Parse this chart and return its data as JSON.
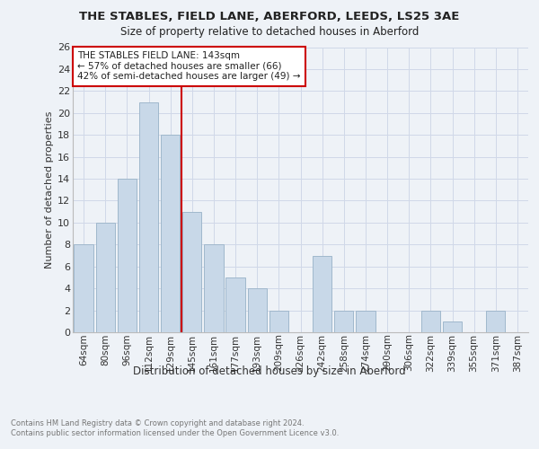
{
  "title1": "THE STABLES, FIELD LANE, ABERFORD, LEEDS, LS25 3AE",
  "title2": "Size of property relative to detached houses in Aberford",
  "xlabel": "Distribution of detached houses by size in Aberford",
  "ylabel": "Number of detached properties",
  "categories": [
    "64sqm",
    "80sqm",
    "96sqm",
    "112sqm",
    "129sqm",
    "145sqm",
    "161sqm",
    "177sqm",
    "193sqm",
    "209sqm",
    "226sqm",
    "242sqm",
    "258sqm",
    "274sqm",
    "290sqm",
    "306sqm",
    "322sqm",
    "339sqm",
    "355sqm",
    "371sqm",
    "387sqm"
  ],
  "values": [
    8,
    10,
    14,
    21,
    18,
    11,
    8,
    5,
    4,
    2,
    0,
    7,
    2,
    2,
    0,
    0,
    2,
    1,
    0,
    2,
    0
  ],
  "bar_color": "#c8d8e8",
  "bar_edge_color": "#a0b8cc",
  "grid_color": "#d0d8e8",
  "vline_x": 4.5,
  "vline_color": "#cc0000",
  "annotation_text": "THE STABLES FIELD LANE: 143sqm\n← 57% of detached houses are smaller (66)\n42% of semi-detached houses are larger (49) →",
  "annotation_box_color": "#ffffff",
  "annotation_box_edge": "#cc0000",
  "footnote": "Contains HM Land Registry data © Crown copyright and database right 2024.\nContains public sector information licensed under the Open Government Licence v3.0.",
  "ylim": [
    0,
    26
  ],
  "yticks": [
    0,
    2,
    4,
    6,
    8,
    10,
    12,
    14,
    16,
    18,
    20,
    22,
    24,
    26
  ],
  "bg_color": "#eef2f7",
  "title1_fontsize": 9.5,
  "title2_fontsize": 8.5,
  "ylabel_fontsize": 8.0,
  "xlabel_fontsize": 8.5,
  "tick_fontsize": 7.5,
  "annot_fontsize": 7.5,
  "footnote_fontsize": 6.0
}
